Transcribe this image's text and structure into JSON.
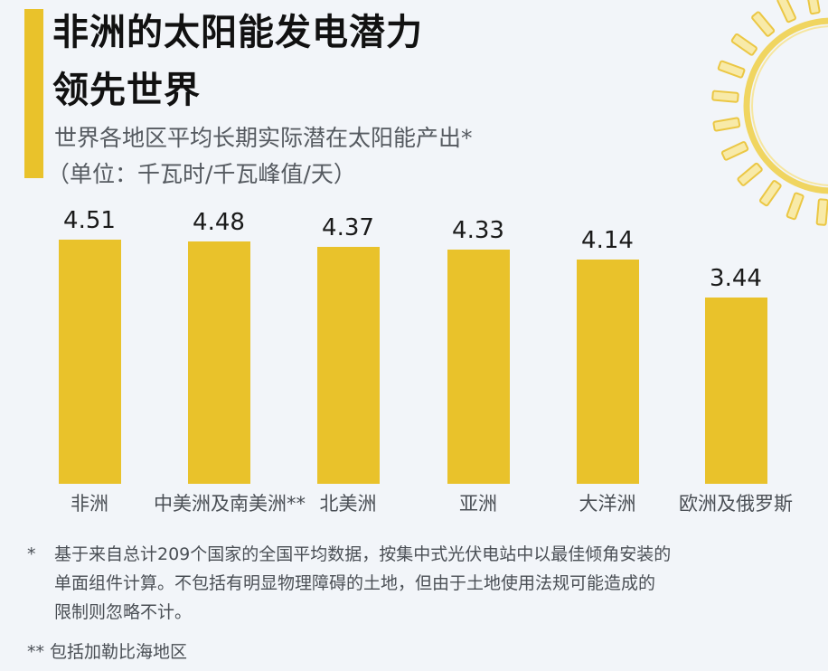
{
  "header": {
    "title_line1": "非洲的太阳能发电潜力",
    "title_line2": "领先世界",
    "subtitle_line1": "世界各地区平均长期实际潜在太阳能产出*",
    "subtitle_line2": "（单位：千瓦时/千瓦峰值/天）"
  },
  "colors": {
    "accent": "#e9c22b",
    "background": "#f2f5f9",
    "sun": "#f0d560"
  },
  "chart_data": {
    "type": "bar",
    "title": "非洲的太阳能发电潜力领先世界",
    "subtitle": "世界各地区平均长期实际潜在太阳能产出*（单位：千瓦时/千瓦峰值/天）",
    "categories": [
      "非洲",
      "中美洲及南美洲**",
      "北美洲",
      "亚洲",
      "大洋洲",
      "欧洲及俄罗斯"
    ],
    "values": [
      4.51,
      4.48,
      4.37,
      4.33,
      4.14,
      3.44
    ],
    "value_labels": [
      "4.51",
      "4.48",
      "4.37",
      "4.33",
      "4.14",
      "3.44"
    ],
    "xlabel": "",
    "ylabel": "千瓦时/千瓦峰值/天",
    "grid": false,
    "legend": "none"
  },
  "footnotes": [
    {
      "mark": "*",
      "text": "基于来自总计209个国家的全国平均数据，按集中式光伏电站中以最佳倾角安装的单面组件计算。不包括有明显物理障碍的土地，但由于土地使用法规可能造成的限制则忽略不计。",
      "lines": [
        "基于来自总计209个国家的全国平均数据，按集中式光伏电站中以最佳倾角安装的",
        "单面组件计算。不包括有明显物理障碍的土地，但由于土地使用法规可能造成的",
        "限制则忽略不计。"
      ]
    },
    {
      "mark": "**",
      "text": "包括加勒比海地区"
    }
  ],
  "decor": {
    "icon": "sun-icon"
  }
}
